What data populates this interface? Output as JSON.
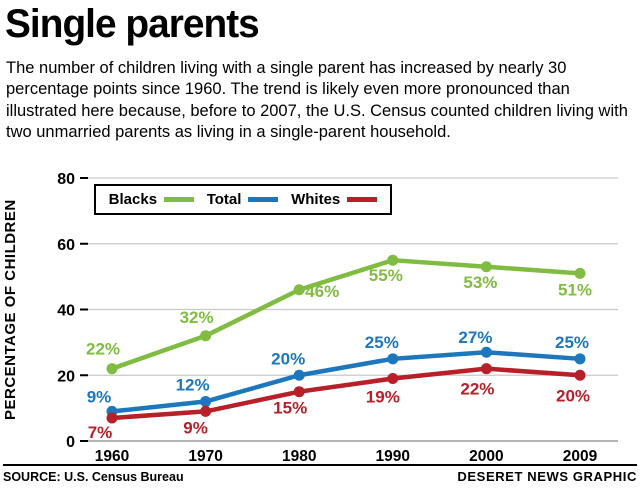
{
  "header": {
    "title": "Single parents",
    "description": "The number of children living with a single parent has increased by nearly 30 percentage points since 1960. The trend is likely even more pronounced than illustrated here because, before to 2007, the U.S. Census counted children living with two unmarried parents as living in a single-parent household."
  },
  "chart_data": {
    "type": "line",
    "title": "Single parents",
    "x": [
      "1960",
      "1970",
      "1980",
      "1990",
      "2000",
      "2009"
    ],
    "series": [
      {
        "name": "Blacks",
        "color": "#80BC41",
        "values": [
          22,
          32,
          46,
          55,
          53,
          51
        ],
        "labels": [
          "22%",
          "32%",
          "46%",
          "55%",
          "53%",
          "51%"
        ]
      },
      {
        "name": "Total",
        "color": "#1C77BD",
        "values": [
          9,
          12,
          20,
          25,
          27,
          25
        ],
        "labels": [
          "9%",
          "12%",
          "20%",
          "25%",
          "27%",
          "25%"
        ]
      },
      {
        "name": "Whites",
        "color": "#B71F29",
        "values": [
          7,
          9,
          15,
          19,
          22,
          20
        ],
        "labels": [
          "7%",
          "9%",
          "15%",
          "19%",
          "22%",
          "20%"
        ]
      }
    ],
    "xlabel": "",
    "ylabel": "PERCENTAGE OF CHILDREN",
    "ylim": [
      0,
      80
    ],
    "yticks": [
      0,
      20,
      40,
      60,
      80
    ],
    "grid": true,
    "legend_position": "top-left",
    "grid_color": "#c9c9c9"
  },
  "footer": {
    "source": "SOURCE: U.S. Census Bureau",
    "credit": "DESERET NEWS GRAPHIC"
  }
}
